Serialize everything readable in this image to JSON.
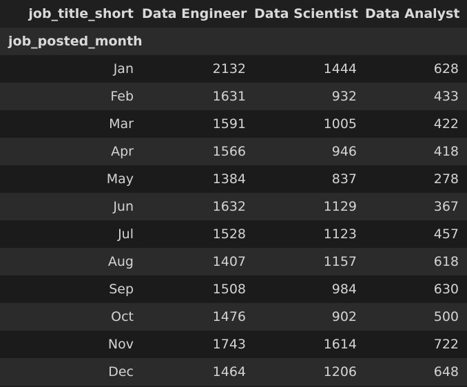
{
  "table": {
    "columns_name": "job_title_short",
    "index_name": "job_posted_month",
    "columns": [
      "Data Engineer",
      "Data Scientist",
      "Data Analyst"
    ],
    "rows": [
      {
        "month": "Jan",
        "values": [
          "2132",
          "1444",
          "628"
        ]
      },
      {
        "month": "Feb",
        "values": [
          "1631",
          "932",
          "433"
        ]
      },
      {
        "month": "Mar",
        "values": [
          "1591",
          "1005",
          "422"
        ]
      },
      {
        "month": "Apr",
        "values": [
          "1566",
          "946",
          "418"
        ]
      },
      {
        "month": "May",
        "values": [
          "1384",
          "837",
          "278"
        ]
      },
      {
        "month": "Jun",
        "values": [
          "1632",
          "1129",
          "367"
        ]
      },
      {
        "month": "Jul",
        "values": [
          "1528",
          "1123",
          "457"
        ]
      },
      {
        "month": "Aug",
        "values": [
          "1407",
          "1157",
          "618"
        ]
      },
      {
        "month": "Sep",
        "values": [
          "1508",
          "984",
          "630"
        ]
      },
      {
        "month": "Oct",
        "values": [
          "1476",
          "902",
          "500"
        ]
      },
      {
        "month": "Nov",
        "values": [
          "1743",
          "1614",
          "722"
        ]
      },
      {
        "month": "Dec",
        "values": [
          "1464",
          "1206",
          "648"
        ]
      }
    ]
  },
  "colors": {
    "background": "#1f1f1f",
    "row_alt": "#2b2b2b",
    "text": "#d4d4d4"
  }
}
